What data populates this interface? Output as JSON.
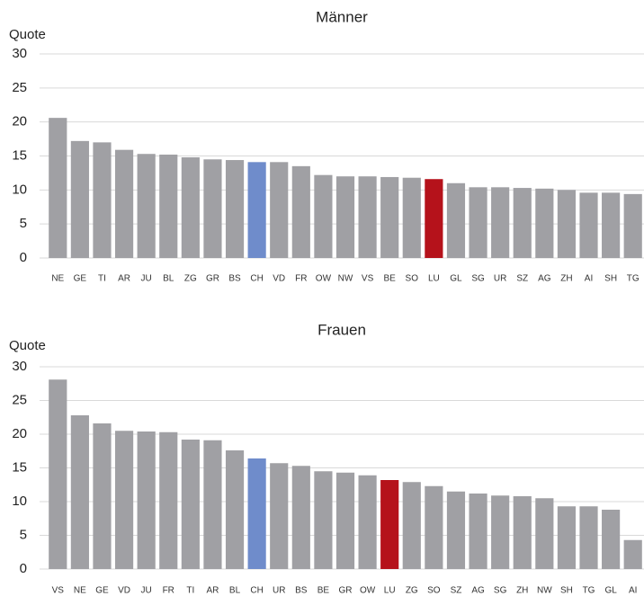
{
  "chart_data": [
    {
      "type": "bar",
      "title": "Männer",
      "y_label": "Quote",
      "categories": [
        "NE",
        "GE",
        "TI",
        "AR",
        "JU",
        "BL",
        "ZG",
        "GR",
        "BS",
        "CH",
        "VD",
        "FR",
        "OW",
        "NW",
        "VS",
        "BE",
        "SO",
        "LU",
        "GL",
        "SG",
        "UR",
        "SZ",
        "AG",
        "ZH",
        "AI",
        "SH",
        "TG"
      ],
      "values": [
        20.6,
        17.2,
        17.0,
        15.9,
        15.3,
        15.2,
        14.8,
        14.5,
        14.4,
        14.1,
        14.1,
        13.5,
        12.2,
        12.0,
        12.0,
        11.9,
        11.8,
        11.6,
        11.0,
        10.4,
        10.4,
        10.3,
        10.2,
        10.0,
        9.6,
        9.6,
        9.4
      ],
      "colors": [
        "#a0a0a4",
        "#a0a0a4",
        "#a0a0a4",
        "#a0a0a4",
        "#a0a0a4",
        "#a0a0a4",
        "#a0a0a4",
        "#a0a0a4",
        "#a0a0a4",
        "#6f8ccb",
        "#a0a0a4",
        "#a0a0a4",
        "#a0a0a4",
        "#a0a0a4",
        "#a0a0a4",
        "#a0a0a4",
        "#a0a0a4",
        "#b5121b",
        "#a0a0a4",
        "#a0a0a4",
        "#a0a0a4",
        "#a0a0a4",
        "#a0a0a4",
        "#a0a0a4",
        "#a0a0a4",
        "#a0a0a4",
        "#a0a0a4"
      ],
      "ylim": [
        0,
        30
      ],
      "yticks": [
        0,
        5,
        10,
        15,
        20,
        25,
        30
      ],
      "grid": true
    },
    {
      "type": "bar",
      "title": "Frauen",
      "y_label": "Quote",
      "categories": [
        "VS",
        "NE",
        "GE",
        "VD",
        "JU",
        "FR",
        "TI",
        "AR",
        "BL",
        "CH",
        "UR",
        "BS",
        "BE",
        "GR",
        "OW",
        "LU",
        "ZG",
        "SO",
        "SZ",
        "AG",
        "SG",
        "ZH",
        "NW",
        "SH",
        "TG",
        "GL",
        "AI"
      ],
      "values": [
        28.1,
        22.8,
        21.6,
        20.5,
        20.4,
        20.3,
        19.2,
        19.1,
        17.6,
        16.4,
        15.7,
        15.3,
        14.5,
        14.3,
        13.9,
        13.2,
        12.9,
        12.3,
        11.5,
        11.2,
        10.9,
        10.8,
        10.5,
        9.3,
        9.3,
        8.8,
        4.3
      ],
      "colors": [
        "#a0a0a4",
        "#a0a0a4",
        "#a0a0a4",
        "#a0a0a4",
        "#a0a0a4",
        "#a0a0a4",
        "#a0a0a4",
        "#a0a0a4",
        "#a0a0a4",
        "#6f8ccb",
        "#a0a0a4",
        "#a0a0a4",
        "#a0a0a4",
        "#a0a0a4",
        "#a0a0a4",
        "#b5121b",
        "#a0a0a4",
        "#a0a0a4",
        "#a0a0a4",
        "#a0a0a4",
        "#a0a0a4",
        "#a0a0a4",
        "#a0a0a4",
        "#a0a0a4",
        "#a0a0a4",
        "#a0a0a4",
        "#a0a0a4"
      ],
      "ylim": [
        0,
        30
      ],
      "yticks": [
        0,
        5,
        10,
        15,
        20,
        25,
        30
      ],
      "grid": true
    }
  ]
}
